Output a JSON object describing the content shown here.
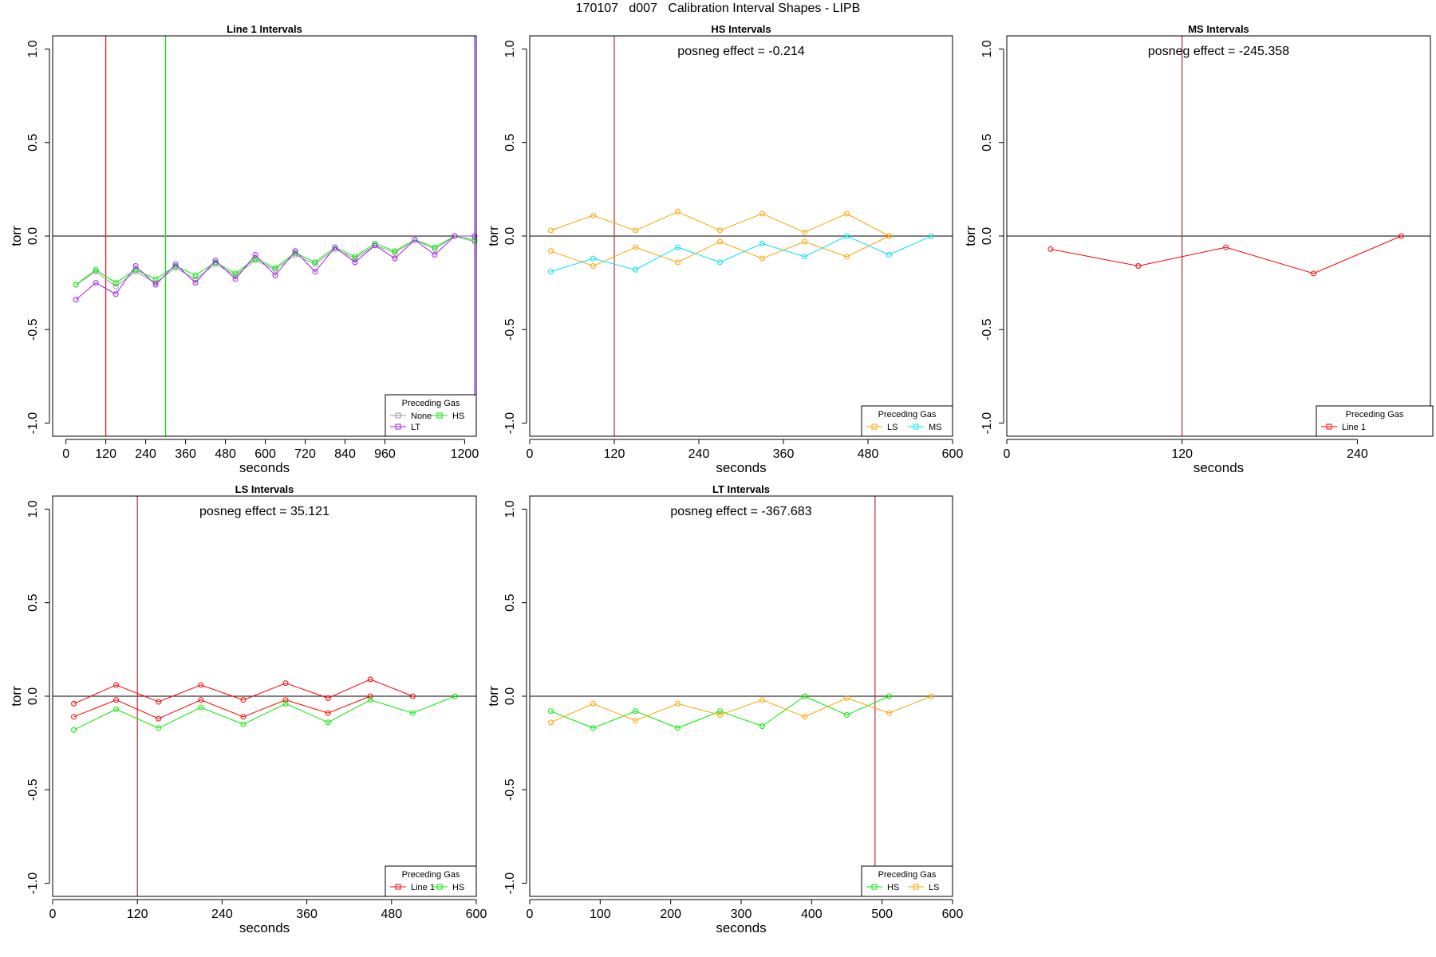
{
  "figure": {
    "title": "170107   d007   Calibration Interval Shapes - LIPB"
  },
  "colors": {
    "None": "#999999",
    "LT": "#a020f0",
    "HS": "#00ee00",
    "LS": "#ffa500",
    "MS": "#00e5ee",
    "Line 1": "#ff0000",
    "vline": "#b03030",
    "zero": "#000000"
  },
  "chart_data": [
    {
      "title": "Line 1 Intervals",
      "type": "line",
      "xlabel": "seconds",
      "ylabel": "torr",
      "xlim": [
        -40,
        1235
      ],
      "ylim": [
        -1.07,
        1.07
      ],
      "xticks": [
        0,
        120,
        240,
        360,
        480,
        600,
        720,
        840,
        960,
        1200
      ],
      "yticks": [
        -1.0,
        -0.5,
        0.0,
        0.5,
        1.0
      ],
      "ytick_labels": [
        "-1.0",
        "-0.5",
        "0.0",
        "0.5",
        "1.0"
      ],
      "annotation": "",
      "vlines": [
        {
          "x": 120,
          "color": "Line 1"
        },
        {
          "x": 300,
          "color": "HS"
        },
        {
          "x": 1230,
          "color": "LT"
        }
      ],
      "legend": {
        "title": "Preceding Gas",
        "position": "bottom-right",
        "entries": [
          "None",
          "HS",
          "LT"
        ]
      },
      "series": [
        {
          "name": "None",
          "x": [
            30,
            90,
            150,
            210,
            270,
            330,
            390,
            450,
            510,
            570,
            630,
            690,
            750,
            810,
            870,
            930,
            990,
            1050,
            1110,
            1170,
            1230
          ],
          "y": [
            -0.26,
            -0.19,
            -0.27,
            -0.19,
            -0.25,
            -0.17,
            -0.23,
            -0.15,
            -0.21,
            -0.13,
            -0.18,
            -0.1,
            -0.15,
            -0.07,
            -0.12,
            -0.05,
            -0.09,
            -0.02,
            -0.07,
            0.0,
            -0.03
          ]
        },
        {
          "name": "HS",
          "x": [
            30,
            90,
            150,
            210,
            270,
            330,
            390,
            450,
            510,
            570,
            630,
            690,
            750,
            810,
            870,
            930,
            990,
            1050,
            1110,
            1170,
            1230
          ],
          "y": [
            -0.26,
            -0.18,
            -0.25,
            -0.18,
            -0.23,
            -0.16,
            -0.21,
            -0.14,
            -0.2,
            -0.12,
            -0.17,
            -0.09,
            -0.14,
            -0.06,
            -0.11,
            -0.04,
            -0.08,
            -0.02,
            -0.06,
            0.0,
            -0.02
          ]
        },
        {
          "name": "LT",
          "x": [
            30,
            90,
            150,
            210,
            270,
            330,
            390,
            450,
            510,
            570,
            630,
            690,
            750,
            810,
            870,
            930,
            990,
            1050,
            1110,
            1170,
            1230
          ],
          "y": [
            -0.34,
            -0.25,
            -0.31,
            -0.16,
            -0.26,
            -0.15,
            -0.25,
            -0.13,
            -0.23,
            -0.1,
            -0.21,
            -0.08,
            -0.19,
            -0.06,
            -0.14,
            -0.05,
            -0.12,
            -0.02,
            -0.1,
            0.0,
            0.0
          ]
        }
      ]
    },
    {
      "title": "HS Intervals",
      "type": "line",
      "xlabel": "seconds",
      "ylabel": "torr",
      "xlim": [
        0,
        600
      ],
      "ylim": [
        -1.07,
        1.07
      ],
      "xticks": [
        0,
        120,
        240,
        360,
        480,
        600
      ],
      "yticks": [
        -1.0,
        -0.5,
        0.0,
        0.5,
        1.0
      ],
      "ytick_labels": [
        "-1.0",
        "-0.5",
        "0.0",
        "0.5",
        "1.0"
      ],
      "annotation": "posneg effect = -0.214",
      "vlines": [
        {
          "x": 120,
          "color": "vline"
        }
      ],
      "legend": {
        "title": "Preceding Gas",
        "position": "bottom-right",
        "entries": [
          "LS",
          "MS"
        ]
      },
      "series": [
        {
          "name": "LS",
          "x": [
            30,
            90,
            150,
            210,
            270,
            330,
            390,
            450,
            510
          ],
          "y": [
            0.03,
            0.11,
            0.03,
            0.13,
            0.03,
            0.12,
            0.02,
            0.12,
            0.0
          ]
        },
        {
          "name": "LS",
          "x": [
            30,
            90,
            150,
            210,
            270,
            330,
            390,
            450,
            510
          ],
          "y": [
            -0.08,
            -0.16,
            -0.06,
            -0.14,
            -0.03,
            -0.12,
            -0.03,
            -0.11,
            0.0
          ]
        },
        {
          "name": "MS",
          "x": [
            30,
            90,
            150,
            210,
            270,
            330,
            390,
            450,
            510,
            570
          ],
          "y": [
            -0.19,
            -0.12,
            -0.18,
            -0.06,
            -0.14,
            -0.04,
            -0.11,
            0.0,
            -0.1,
            0.0
          ]
        }
      ]
    },
    {
      "title": "MS Intervals",
      "type": "line",
      "xlabel": "seconds",
      "ylabel": "torr",
      "xlim": [
        0,
        290
      ],
      "ylim": [
        -1.07,
        1.07
      ],
      "xticks": [
        0,
        120,
        240
      ],
      "yticks": [
        -1.0,
        -0.5,
        0.0,
        0.5,
        1.0
      ],
      "ytick_labels": [
        "-1.0",
        "-0.5",
        "0.0",
        "0.5",
        "1.0"
      ],
      "annotation": "posneg effect = -245.358",
      "vlines": [
        {
          "x": 120,
          "color": "vline"
        }
      ],
      "legend": {
        "title": "Preceding Gas",
        "position": "bottom-right",
        "entries": [
          "Line 1"
        ]
      },
      "series": [
        {
          "name": "Line 1",
          "x": [
            30,
            90,
            150,
            210,
            270
          ],
          "y": [
            -0.07,
            -0.16,
            -0.06,
            -0.2,
            0.0
          ]
        }
      ]
    },
    {
      "title": "LS Intervals",
      "type": "line",
      "xlabel": "seconds",
      "ylabel": "torr",
      "xlim": [
        0,
        600
      ],
      "ylim": [
        -1.07,
        1.07
      ],
      "xticks": [
        0,
        120,
        240,
        360,
        480,
        600
      ],
      "yticks": [
        -1.0,
        -0.5,
        0.0,
        0.5,
        1.0
      ],
      "ytick_labels": [
        "-1.0",
        "-0.5",
        "0.0",
        "0.5",
        "1.0"
      ],
      "annotation": "posneg effect = 35.121",
      "vlines": [
        {
          "x": 120,
          "color": "vline"
        }
      ],
      "legend": {
        "title": "Preceding Gas",
        "position": "bottom-right",
        "entries": [
          "Line 1",
          "HS"
        ]
      },
      "series": [
        {
          "name": "Line 1",
          "x": [
            30,
            90,
            150,
            210,
            270,
            330,
            390,
            450,
            510
          ],
          "y": [
            -0.04,
            0.06,
            -0.03,
            0.06,
            -0.02,
            0.07,
            -0.01,
            0.09,
            0.0
          ]
        },
        {
          "name": "Line 1",
          "x": [
            30,
            90,
            150,
            210,
            270,
            330,
            390,
            450
          ],
          "y": [
            -0.11,
            -0.02,
            -0.12,
            -0.02,
            -0.11,
            -0.02,
            -0.09,
            0.0
          ]
        },
        {
          "name": "HS",
          "x": [
            30,
            90,
            150,
            210,
            270,
            330,
            390,
            450,
            510,
            570
          ],
          "y": [
            -0.18,
            -0.07,
            -0.17,
            -0.06,
            -0.15,
            -0.04,
            -0.14,
            -0.02,
            -0.09,
            0.0
          ]
        }
      ]
    },
    {
      "title": "LT Intervals",
      "type": "line",
      "xlabel": "seconds",
      "ylabel": "torr",
      "xlim": [
        0,
        600
      ],
      "ylim": [
        -1.07,
        1.07
      ],
      "xticks": [
        0,
        100,
        200,
        300,
        400,
        500,
        600
      ],
      "yticks": [
        -1.0,
        -0.5,
        0.0,
        0.5,
        1.0
      ],
      "ytick_labels": [
        "-1.0",
        "-0.5",
        "0.0",
        "0.5",
        "1.0"
      ],
      "annotation": "posneg effect = -367.683",
      "vlines": [
        {
          "x": 490,
          "color": "vline"
        }
      ],
      "legend": {
        "title": "Preceding Gas",
        "position": "bottom-right",
        "entries": [
          "HS",
          "LS"
        ]
      },
      "series": [
        {
          "name": "HS",
          "x": [
            30,
            90,
            150,
            210,
            270,
            330,
            390,
            450,
            510
          ],
          "y": [
            -0.08,
            -0.17,
            -0.08,
            -0.17,
            -0.08,
            -0.16,
            0.0,
            -0.1,
            0.0
          ]
        },
        {
          "name": "LS",
          "x": [
            30,
            90,
            150,
            210,
            270,
            330,
            390,
            450,
            510,
            570
          ],
          "y": [
            -0.14,
            -0.04,
            -0.13,
            -0.04,
            -0.1,
            -0.02,
            -0.11,
            -0.01,
            -0.09,
            0.0
          ]
        }
      ]
    }
  ]
}
